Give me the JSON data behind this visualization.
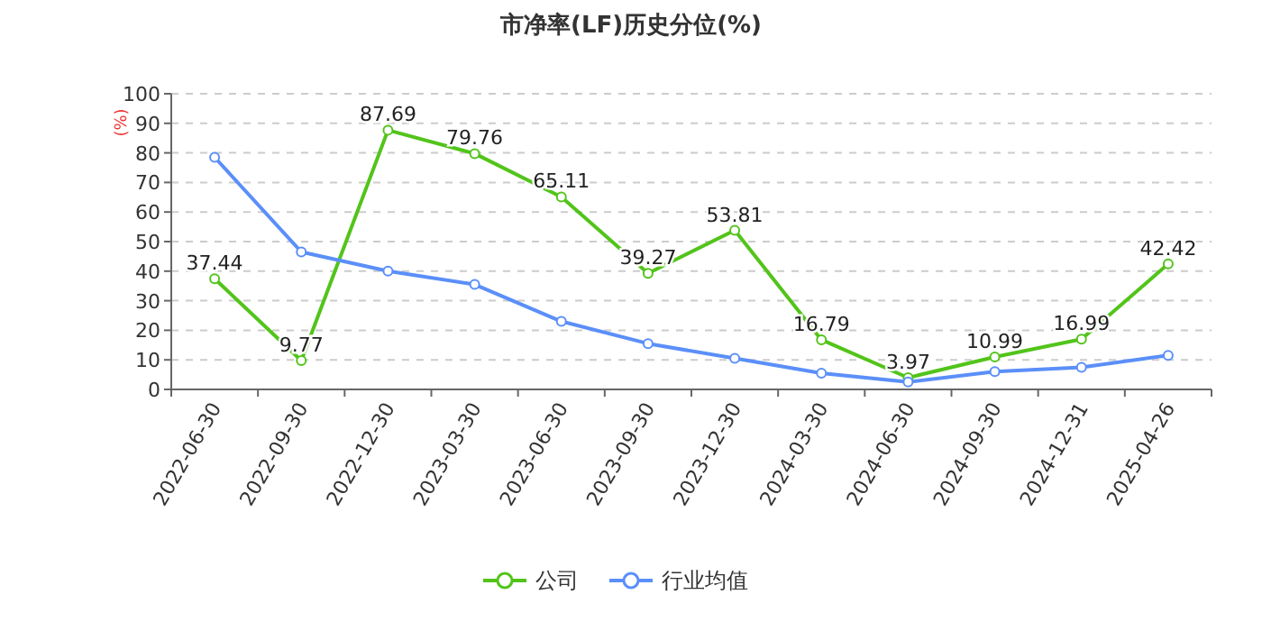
{
  "chart_data": {
    "type": "line",
    "title": "市净率(LF)历史分位(%)",
    "ylabel": "(%)",
    "categories": [
      "2022-06-30",
      "2022-09-30",
      "2022-12-30",
      "2023-03-30",
      "2023-06-30",
      "2023-09-30",
      "2023-12-30",
      "2024-03-30",
      "2024-06-30",
      "2024-09-30",
      "2024-12-31",
      "2025-04-26"
    ],
    "series": [
      {
        "name": "公司",
        "color": "#52c41a",
        "values": [
          37.44,
          9.77,
          87.69,
          79.76,
          65.11,
          39.27,
          53.81,
          16.79,
          3.97,
          10.99,
          16.99,
          42.42
        ],
        "value_labels": [
          "37.44",
          "9.77",
          "87.69",
          "79.76",
          "65.11",
          "39.27",
          "53.81",
          "16.79",
          "3.97",
          "10.99",
          "16.99",
          "42.42"
        ]
      },
      {
        "name": "行业均值",
        "color": "#5b8ff9",
        "values": [
          78.5,
          46.5,
          40,
          35.5,
          23,
          15.5,
          10.5,
          5.5,
          2.5,
          6,
          7.5,
          11.5
        ]
      }
    ],
    "ylim": [
      0,
      100
    ],
    "yticks": [
      0,
      10,
      20,
      30,
      40,
      50,
      60,
      70,
      80,
      90,
      100
    ],
    "grid": "y",
    "legend": "bottom",
    "marker": "circle",
    "line_style": "solid"
  }
}
